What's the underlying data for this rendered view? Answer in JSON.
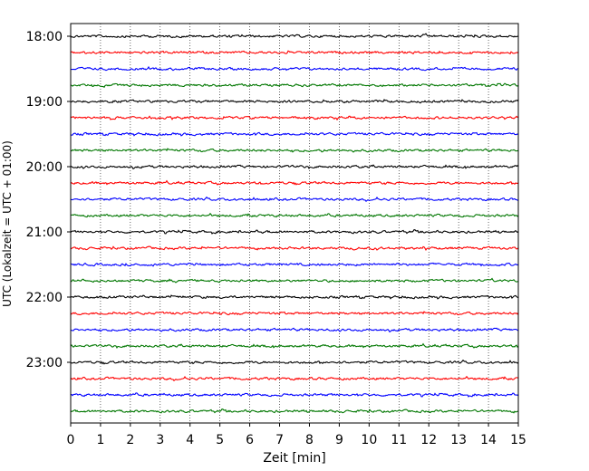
{
  "chart_data": {
    "type": "line",
    "xlabel": "Zeit  [min]",
    "ylabel": "UTC (Lokalzeit = UTC + 01:00)",
    "xlim": [
      0,
      15
    ],
    "x_ticks": [
      "0",
      "1",
      "2",
      "3",
      "4",
      "5",
      "6",
      "7",
      "8",
      "9",
      "10",
      "11",
      "12",
      "13",
      "14",
      "15"
    ],
    "y_ticks": [
      "18:00",
      "19:00",
      "20:00",
      "21:00",
      "22:00",
      "23:00"
    ],
    "grid": "vertical dotted",
    "trace_interval_minutes": 15,
    "first_trace": "18:00",
    "last_trace": "23:45",
    "colors_cycle": [
      "#000000",
      "#ff0000",
      "#0000ff",
      "#007700"
    ]
  }
}
